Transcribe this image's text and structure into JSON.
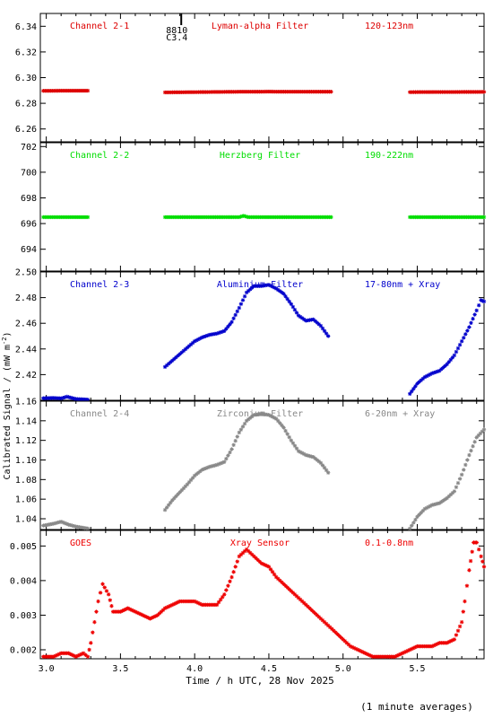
{
  "chart_data": [
    {
      "type": "scatter",
      "channel": "Channel 2-1",
      "filter": "Lyman-alpha Filter",
      "band": "120-123nm",
      "color": "#dd0000",
      "ylim": [
        6.25,
        6.35
      ],
      "yticks": [
        "6.26",
        "6.28",
        "6.30",
        "6.32",
        "6.34"
      ],
      "ytick_values": [
        6.26,
        6.28,
        6.3,
        6.32,
        6.34
      ],
      "segments": [
        {
          "x": [
            2.98,
            3.1,
            3.28
          ],
          "y": [
            6.2897,
            6.2898,
            6.2898
          ]
        },
        {
          "x": [
            3.8,
            3.9,
            4.0,
            4.1,
            4.2,
            4.3,
            4.4,
            4.5,
            4.6,
            4.7,
            4.8,
            4.92
          ],
          "y": [
            6.2885,
            6.2886,
            6.2887,
            6.2888,
            6.2889,
            6.289,
            6.289,
            6.2891,
            6.289,
            6.289,
            6.289,
            6.289
          ]
        },
        {
          "x": [
            5.45,
            5.6,
            5.75,
            5.95
          ],
          "y": [
            6.2887,
            6.2888,
            6.2888,
            6.2889
          ]
        }
      ],
      "annotation": {
        "line1": "8810",
        "line2": "C3.4",
        "x": 3.97
      }
    },
    {
      "type": "scatter",
      "channel": "Channel 2-2",
      "filter": "Herzberg Filter",
      "band": "190-222nm",
      "color": "#00dd00",
      "ylim": [
        692.3,
        702.3
      ],
      "yticks": [
        "694",
        "696",
        "698",
        "700",
        "702"
      ],
      "ytick_values": [
        694,
        696,
        698,
        700,
        702
      ],
      "segments": [
        {
          "x": [
            2.98,
            3.1,
            3.28
          ],
          "y": [
            696.5,
            696.5,
            696.5
          ]
        },
        {
          "x": [
            3.8,
            4.0,
            4.2,
            4.3,
            4.33,
            4.36,
            4.5,
            4.7,
            4.92
          ],
          "y": [
            696.5,
            696.5,
            696.5,
            696.5,
            696.6,
            696.5,
            696.5,
            696.5,
            696.5
          ]
        },
        {
          "x": [
            5.45,
            5.6,
            5.75,
            5.95
          ],
          "y": [
            696.5,
            696.5,
            696.5,
            696.5
          ]
        }
      ]
    },
    {
      "type": "scatter",
      "channel": "Channel 2-3",
      "filter": "Aluminium Filter",
      "band": "17-80nm + Xray",
      "color": "#0000cc",
      "ylim": [
        2.4,
        2.5
      ],
      "yticks": [
        "2.42",
        "2.44",
        "2.46",
        "2.48",
        "2.50"
      ],
      "ytick_values": [
        2.42,
        2.44,
        2.46,
        2.48,
        2.5
      ],
      "segments": [
        {
          "x": [
            2.98,
            3.05,
            3.1,
            3.14,
            3.2,
            3.28
          ],
          "y": [
            2.4016,
            2.4018,
            2.4015,
            2.4028,
            2.401,
            2.4005
          ]
        },
        {
          "x": [
            3.8,
            3.85,
            3.9,
            3.95,
            4.0,
            4.05,
            4.1,
            4.15,
            4.2,
            4.25,
            4.3,
            4.35,
            4.4,
            4.45,
            4.5,
            4.55,
            4.6,
            4.65,
            4.7,
            4.75,
            4.8,
            4.85,
            4.9
          ],
          "y": [
            2.426,
            2.431,
            2.436,
            2.441,
            2.446,
            2.449,
            2.451,
            2.452,
            2.454,
            2.461,
            2.472,
            2.484,
            2.489,
            2.489,
            2.49,
            2.487,
            2.483,
            2.475,
            2.466,
            2.462,
            2.463,
            2.458,
            2.45
          ]
        },
        {
          "x": [
            5.45,
            5.5,
            5.55,
            5.6,
            5.65,
            5.7,
            5.75,
            5.8,
            5.85,
            5.9,
            5.93,
            5.95
          ],
          "y": [
            2.405,
            2.413,
            2.418,
            2.421,
            2.423,
            2.428,
            2.435,
            2.446,
            2.457,
            2.47,
            2.478,
            2.477
          ]
        }
      ]
    },
    {
      "type": "scatter",
      "channel": "Channel 2-4",
      "filter": "Zirconium Filter",
      "band": "6-20nm + Xray",
      "color": "#888888",
      "ylim": [
        1.029,
        1.16
      ],
      "yticks": [
        "1.04",
        "1.06",
        "1.08",
        "1.10",
        "1.12",
        "1.14",
        "1.16"
      ],
      "ytick_values": [
        1.04,
        1.06,
        1.08,
        1.1,
        1.12,
        1.14,
        1.16
      ],
      "segments": [
        {
          "x": [
            2.98,
            3.05,
            3.1,
            3.15,
            3.2,
            3.28
          ],
          "y": [
            1.033,
            1.035,
            1.037,
            1.034,
            1.032,
            1.03
          ]
        },
        {
          "x": [
            3.8,
            3.85,
            3.9,
            3.95,
            4.0,
            4.05,
            4.1,
            4.15,
            4.2,
            4.25,
            4.3,
            4.35,
            4.4,
            4.45,
            4.5,
            4.55,
            4.6,
            4.65,
            4.7,
            4.75,
            4.8,
            4.85,
            4.9
          ],
          "y": [
            1.049,
            1.059,
            1.067,
            1.075,
            1.084,
            1.09,
            1.093,
            1.095,
            1.098,
            1.111,
            1.128,
            1.14,
            1.146,
            1.147,
            1.146,
            1.142,
            1.133,
            1.12,
            1.109,
            1.105,
            1.103,
            1.097,
            1.087
          ]
        },
        {
          "x": [
            5.45,
            5.5,
            5.55,
            5.6,
            5.65,
            5.7,
            5.75,
            5.8,
            5.85,
            5.9,
            5.95
          ],
          "y": [
            1.03,
            1.042,
            1.05,
            1.054,
            1.056,
            1.061,
            1.068,
            1.085,
            1.105,
            1.123,
            1.131
          ]
        }
      ]
    },
    {
      "type": "scatter",
      "channel": "GOES",
      "filter": "Xray Sensor",
      "band": "0.1-0.8nm",
      "color": "#ee0000",
      "ylim": [
        0.00174,
        0.00545
      ],
      "yticks": [
        "0.002",
        "0.003",
        "0.004",
        "0.005"
      ],
      "ytick_values": [
        0.002,
        0.003,
        0.004,
        0.005
      ],
      "segments": [
        {
          "x": [
            2.98,
            3.05,
            3.1,
            3.15,
            3.2,
            3.25,
            3.28,
            3.3,
            3.35,
            3.38,
            3.42,
            3.45,
            3.5,
            3.55,
            3.6,
            3.65,
            3.7,
            3.75,
            3.8,
            3.85,
            3.9,
            3.95,
            4.0,
            4.05,
            4.1,
            4.15,
            4.2,
            4.25,
            4.3,
            4.35,
            4.4,
            4.45,
            4.5,
            4.55,
            4.6,
            4.65,
            4.7,
            4.75,
            4.8,
            4.85,
            4.9,
            4.95,
            5.0,
            5.05,
            5.1,
            5.15,
            5.2,
            5.25,
            5.3,
            5.35,
            5.4,
            5.45,
            5.5,
            5.55,
            5.6,
            5.65,
            5.7,
            5.75,
            5.8,
            5.82,
            5.85,
            5.88,
            5.9,
            5.93,
            5.95
          ],
          "y": [
            0.0018,
            0.0018,
            0.0019,
            0.0019,
            0.0018,
            0.0019,
            0.0018,
            0.0022,
            0.0034,
            0.0039,
            0.0036,
            0.0031,
            0.0031,
            0.0032,
            0.0031,
            0.003,
            0.0029,
            0.003,
            0.0032,
            0.0033,
            0.0034,
            0.0034,
            0.0034,
            0.0033,
            0.0033,
            0.0033,
            0.0036,
            0.0041,
            0.0047,
            0.0049,
            0.0047,
            0.0045,
            0.0044,
            0.0041,
            0.0039,
            0.0037,
            0.0035,
            0.0033,
            0.0031,
            0.0029,
            0.0027,
            0.0025,
            0.0023,
            0.0021,
            0.002,
            0.0019,
            0.0018,
            0.0018,
            0.0018,
            0.0018,
            0.0019,
            0.002,
            0.0021,
            0.0021,
            0.0021,
            0.0022,
            0.0022,
            0.0023,
            0.0028,
            0.0034,
            0.0043,
            0.0051,
            0.0051,
            0.0047,
            0.0044
          ]
        }
      ]
    }
  ],
  "axes": {
    "xlim": [
      2.96,
      5.95
    ],
    "xticks": [
      "3.0",
      "3.5",
      "4.0",
      "4.5",
      "5.0",
      "5.5"
    ],
    "xtick_values": [
      3.0,
      3.5,
      4.0,
      4.5,
      5.0,
      5.5
    ],
    "xlabel": "Time / h UTC, 28 Nov 2025",
    "ylabel": "Calibrated Signal / (mW m",
    "ylabel_sup": "-2",
    "ylabel_end": ")"
  },
  "footer": "(1 minute averages)"
}
